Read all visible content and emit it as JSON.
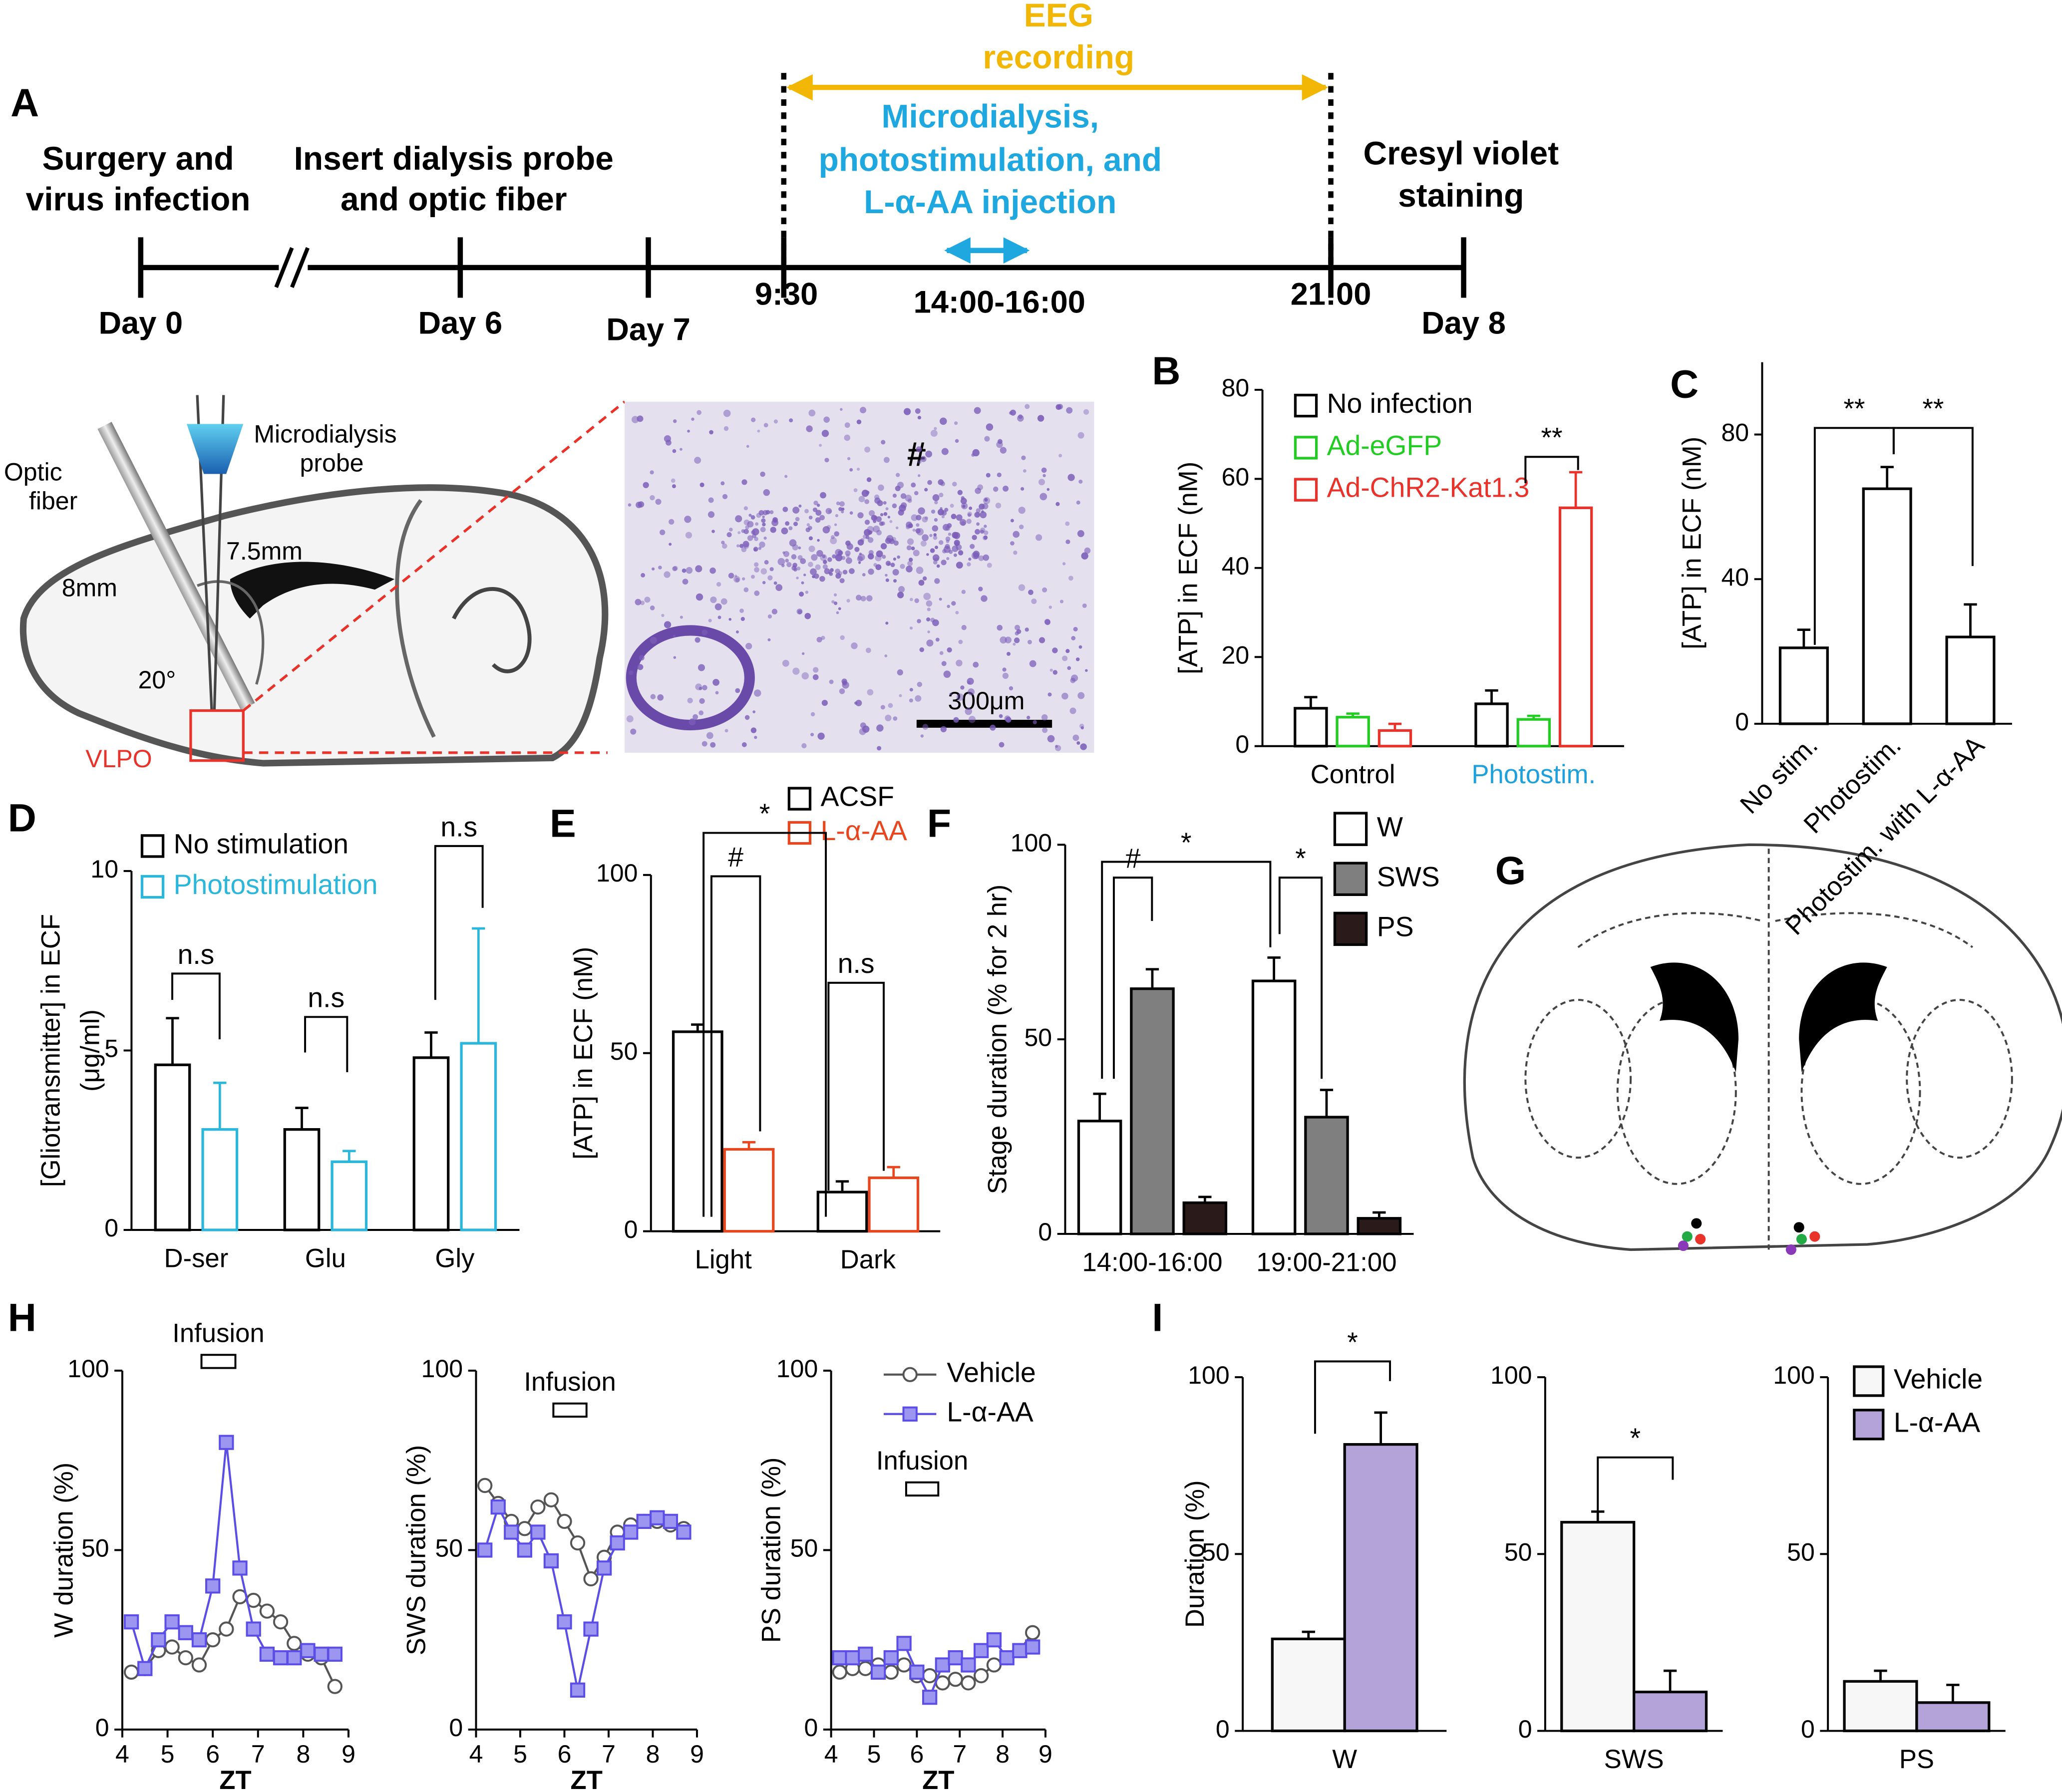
{
  "panel_labels": [
    "A",
    "B",
    "C",
    "D",
    "E",
    "F",
    "G",
    "H",
    "I"
  ],
  "timeline": {
    "eeg": [
      "EEG",
      "recording"
    ],
    "procedure": [
      "Microdialysis,",
      "photostimulation, and",
      "L-α-AA injection"
    ],
    "stages": [
      [
        "Surgery and",
        "virus infection"
      ],
      [
        "Insert dialysis probe",
        "and optic fiber"
      ],
      [
        "Cresyl violet",
        "staining"
      ]
    ],
    "ticks": [
      "Day 0",
      "Day 6",
      "Day 7",
      "9:30",
      "21:00",
      "Day 8"
    ],
    "window": "14:00-16:00"
  },
  "illustration": {
    "optic_fiber": [
      "Optic",
      "fiber"
    ],
    "probe": [
      "Microdialysis",
      "probe"
    ],
    "depth": "7.5mm",
    "length": "8mm",
    "angle": "20°",
    "region": "VLPO",
    "histology_mark": "#",
    "scale_bar": "300μm"
  },
  "chart_data": [
    {
      "type": "bar",
      "ylabel": "[ATP] in ECF (nM)",
      "categories": [
        "Control",
        "Photostim."
      ],
      "category_colors": [
        "#000000",
        "#1ea0dc"
      ],
      "series": [
        {
          "name": "No infection",
          "color": "#000000",
          "fill": "#ffffff",
          "values": [
            8.5,
            9.5
          ],
          "errors": [
            2.5,
            3
          ]
        },
        {
          "name": "Ad-eGFP",
          "color": "#22cc22",
          "fill": "#ffffff",
          "values": [
            6.5,
            6
          ],
          "errors": [
            0.8,
            0.8
          ]
        },
        {
          "name": "Ad-ChR2-Kat1.3",
          "color": "#e8322a",
          "fill": "#ffffff",
          "values": [
            3.5,
            53.5
          ],
          "errors": [
            1.5,
            8
          ]
        }
      ],
      "ylim": [
        0,
        80
      ],
      "yticks": [
        0,
        20,
        40,
        60,
        80
      ],
      "annotations": [
        "**"
      ]
    },
    {
      "type": "bar",
      "ylabel": "[ATP] in ECF (nM)",
      "categories": [
        "No stim.",
        "Photostim.",
        "Photostim. with L-α-AA"
      ],
      "rotate_categories": true,
      "series": [
        {
          "color": "#000000",
          "fill": "#ffffff",
          "values": [
            21,
            65,
            24
          ],
          "errors": [
            5,
            6,
            9
          ]
        }
      ],
      "ylim": [
        0,
        100
      ],
      "yticks": [
        0,
        40,
        80
      ],
      "annotations": [
        "**",
        "**"
      ]
    },
    {
      "type": "bar",
      "ylabel": [
        "[Gliotransmitter] in ECF",
        "(μg/ml)"
      ],
      "categories": [
        "D-ser",
        "Glu",
        "Gly"
      ],
      "series": [
        {
          "name": "No stimulation",
          "color": "#000000",
          "fill": "#ffffff",
          "values": [
            4.6,
            2.8,
            4.8
          ],
          "errors": [
            1.3,
            0.6,
            0.7
          ]
        },
        {
          "name": "Photostimulation",
          "color": "#2bb6dc",
          "fill": "#ffffff",
          "values": [
            2.8,
            1.9,
            5.2
          ],
          "errors": [
            1.3,
            0.3,
            3.2
          ]
        }
      ],
      "ylim": [
        0,
        10
      ],
      "yticks": [
        0,
        5,
        10
      ],
      "annotations": [
        "n.s",
        "n.s",
        "n.s"
      ]
    },
    {
      "type": "bar",
      "ylabel": "[ATP] in ECF (nM)",
      "categories": [
        "Light",
        "Dark"
      ],
      "series": [
        {
          "name": "ACSF",
          "color": "#000000",
          "fill": "#ffffff",
          "values": [
            56,
            11
          ],
          "errors": [
            2,
            3
          ]
        },
        {
          "name": "L-α-AA",
          "color": "#e8461e",
          "fill": "#ffffff",
          "values": [
            23,
            15
          ],
          "errors": [
            2,
            3
          ]
        }
      ],
      "ylim": [
        0,
        100
      ],
      "yticks": [
        0,
        50,
        100
      ],
      "annotations": [
        "#",
        "n.s",
        "*"
      ]
    },
    {
      "type": "bar",
      "ylabel": "Stage duration (% for 2 hr)",
      "categories": [
        "14:00-16:00",
        "19:00-21:00"
      ],
      "series": [
        {
          "name": "W",
          "color": "#000000",
          "fill": "#ffffff",
          "values": [
            29,
            65
          ],
          "errors": [
            7,
            6
          ]
        },
        {
          "name": "SWS",
          "color": "#000000",
          "fill": "#7f7f7f",
          "values": [
            63,
            30
          ],
          "errors": [
            5,
            7
          ]
        },
        {
          "name": "PS",
          "color": "#000000",
          "fill": "#2a1a1a",
          "values": [
            8,
            4
          ],
          "errors": [
            1.5,
            1.5
          ]
        }
      ],
      "ylim": [
        0,
        100
      ],
      "yticks": [
        0,
        50,
        100
      ],
      "annotations": [
        "#",
        "*",
        "*"
      ]
    },
    {
      "type": "line",
      "ylabel": "W duration (%)",
      "xlabel": "ZT",
      "infusion": {
        "label": "Infusion",
        "start": 5.75,
        "end": 6.5
      },
      "x": [
        4.2,
        4.5,
        4.8,
        5.1,
        5.4,
        5.7,
        6.0,
        6.3,
        6.6,
        6.9,
        7.2,
        7.5,
        7.8,
        8.1,
        8.4,
        8.7
      ],
      "xlim": [
        4,
        9
      ],
      "xticks": [
        4,
        5,
        6,
        7,
        8,
        9
      ],
      "ylim": [
        0,
        100
      ],
      "yticks": [
        0,
        50,
        100
      ],
      "series": [
        {
          "color": "#555555",
          "marker": "circle",
          "values": [
            16,
            17,
            22,
            23,
            20,
            18,
            25,
            28,
            37,
            36,
            33,
            30,
            24,
            21,
            20,
            12
          ]
        },
        {
          "color": "#5a4ee6",
          "marker": "square",
          "values": [
            30,
            17,
            25,
            30,
            27,
            25,
            40,
            80,
            45,
            28,
            21,
            20,
            20,
            22,
            21,
            21
          ]
        }
      ]
    },
    {
      "type": "line",
      "ylabel": "SWS duration (%)",
      "xlabel": "ZT",
      "infusion": {
        "label": "Infusion",
        "start": 5.75,
        "end": 6.5
      },
      "x": [
        4.2,
        4.5,
        4.8,
        5.1,
        5.4,
        5.7,
        6.0,
        6.3,
        6.6,
        6.9,
        7.2,
        7.5,
        7.8,
        8.1,
        8.4,
        8.7
      ],
      "xlim": [
        4,
        9
      ],
      "xticks": [
        4,
        5,
        6,
        7,
        8,
        9
      ],
      "ylim": [
        0,
        100
      ],
      "yticks": [
        0,
        50,
        100
      ],
      "series": [
        {
          "color": "#555555",
          "marker": "circle",
          "values": [
            68,
            63,
            58,
            56,
            62,
            64,
            58,
            52,
            42,
            48,
            55,
            57,
            58,
            58,
            57,
            56
          ]
        },
        {
          "color": "#5a4ee6",
          "marker": "square",
          "values": [
            50,
            62,
            55,
            50,
            55,
            47,
            30,
            11,
            28,
            45,
            52,
            55,
            58,
            59,
            58,
            55
          ]
        }
      ]
    },
    {
      "type": "line",
      "ylabel": "PS duration (%)",
      "xlabel": "ZT",
      "infusion": {
        "label": "Infusion",
        "start": 5.75,
        "end": 6.5
      },
      "x": [
        4.2,
        4.5,
        4.8,
        5.1,
        5.4,
        5.7,
        6.0,
        6.3,
        6.6,
        6.9,
        7.2,
        7.5,
        7.8,
        8.1,
        8.4,
        8.7
      ],
      "xlim": [
        4,
        9
      ],
      "xticks": [
        4,
        5,
        6,
        7,
        8,
        9
      ],
      "ylim": [
        0,
        100
      ],
      "yticks": [
        0,
        50,
        100
      ],
      "series": [
        {
          "name": "Vehicle",
          "color": "#555555",
          "marker": "circle",
          "values": [
            16,
            17,
            17,
            18,
            16,
            18,
            15,
            15,
            13,
            14,
            13,
            15,
            18,
            20,
            22,
            27
          ]
        },
        {
          "name": "L-α-AA",
          "color": "#5a4ee6",
          "marker": "square",
          "values": [
            20,
            20,
            21,
            16,
            20,
            24,
            16,
            9,
            18,
            20,
            18,
            22,
            25,
            20,
            22,
            23
          ]
        }
      ]
    },
    {
      "type": "bar",
      "ylabel": "Duration (%)",
      "categories": [
        "W"
      ],
      "series": [
        {
          "color": "#000000",
          "fill": "#f7f7f7",
          "values": [
            26
          ],
          "errors": [
            2
          ]
        },
        {
          "color": "#000000",
          "fill": "#b3a3d8",
          "values": [
            81
          ],
          "errors": [
            9
          ]
        }
      ],
      "ylim": [
        0,
        100
      ],
      "yticks": [
        0,
        50,
        100
      ],
      "annotations": [
        "*"
      ]
    },
    {
      "type": "bar",
      "categories": [
        "SWS"
      ],
      "series": [
        {
          "color": "#000000",
          "fill": "#f7f7f7",
          "values": [
            59
          ],
          "errors": [
            3
          ]
        },
        {
          "color": "#000000",
          "fill": "#b3a3d8",
          "values": [
            11
          ],
          "errors": [
            6
          ]
        }
      ],
      "ylim": [
        0,
        100
      ],
      "yticks": [
        0,
        50,
        100
      ],
      "annotations": [
        "*"
      ]
    },
    {
      "type": "bar",
      "categories": [
        "PS"
      ],
      "series": [
        {
          "name": "Vehicle",
          "color": "#000000",
          "fill": "#f7f7f7",
          "values": [
            14
          ],
          "errors": [
            3
          ]
        },
        {
          "name": "L-α-AA",
          "color": "#000000",
          "fill": "#b3a3d8",
          "values": [
            8
          ],
          "errors": [
            5
          ]
        }
      ],
      "ylim": [
        0,
        100
      ],
      "yticks": [
        0,
        50,
        100
      ]
    }
  ]
}
